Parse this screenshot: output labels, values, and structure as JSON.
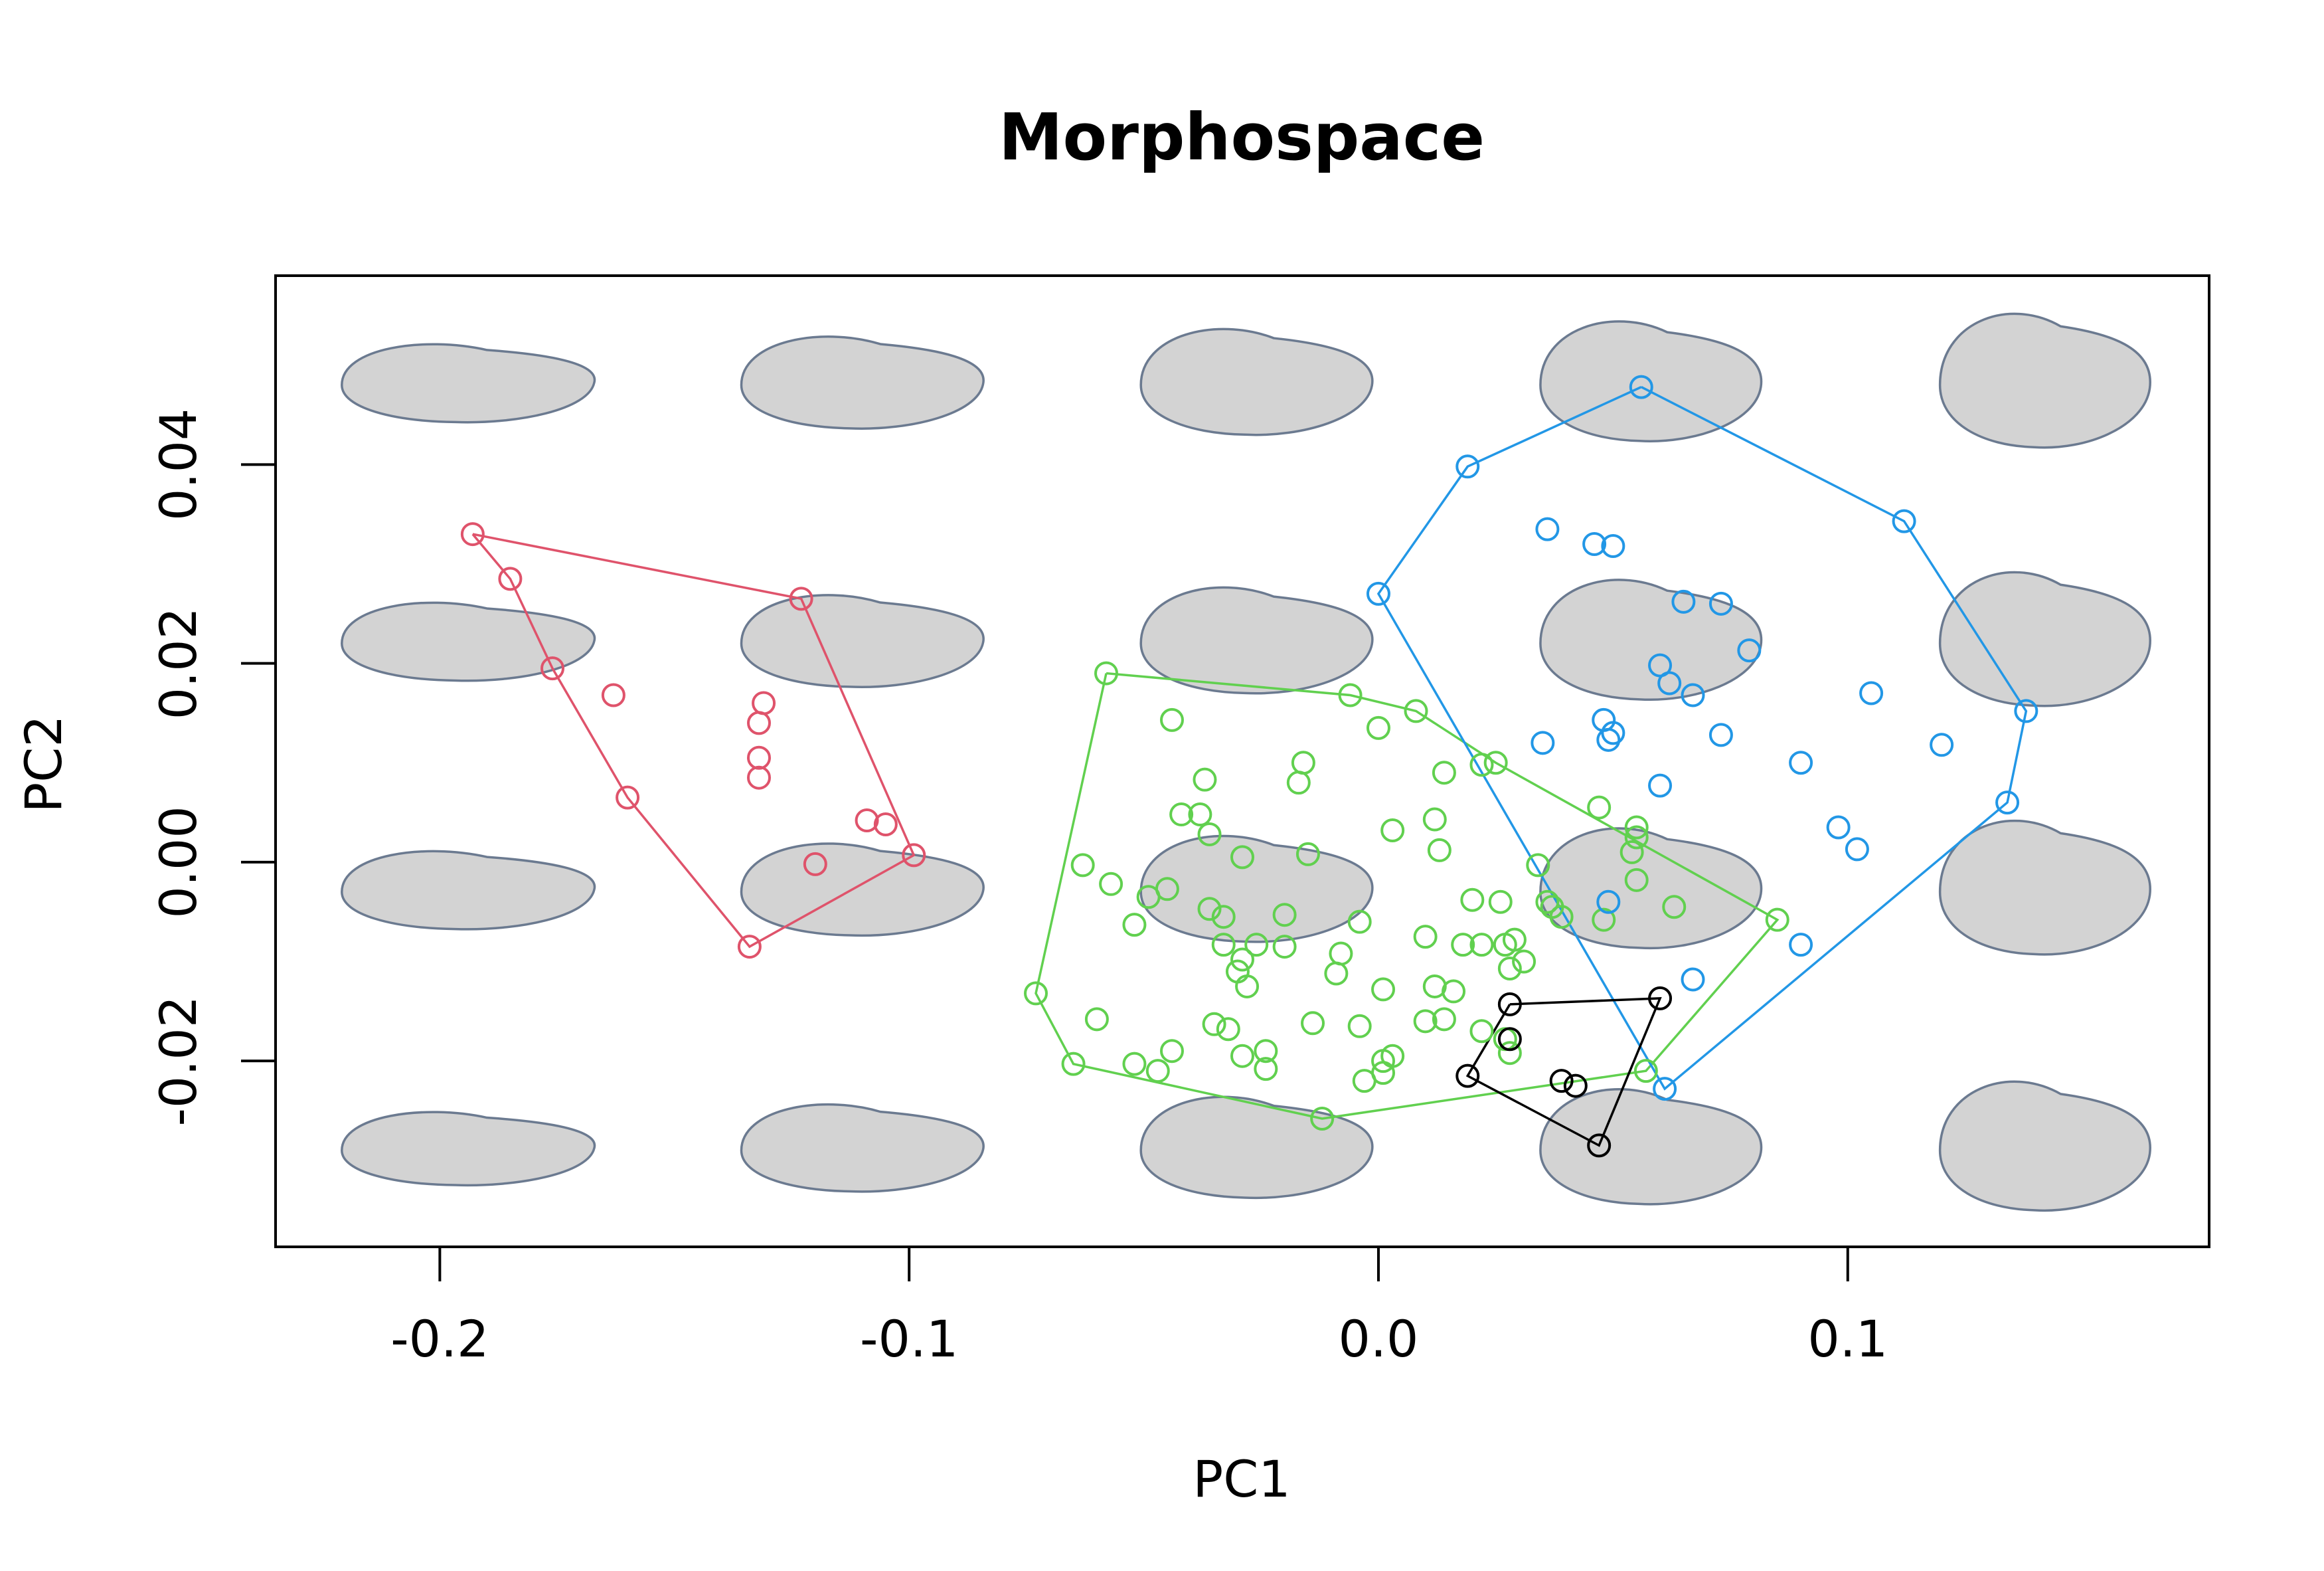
{
  "chart_data": {
    "type": "scatter",
    "title": "Morphospace",
    "xlabel": "PC1",
    "ylabel": "PC2",
    "xlim": [
      -0.235,
      0.177
    ],
    "ylim": [
      -0.0387,
      0.059
    ],
    "xticks": [
      -0.2,
      -0.1,
      0.0,
      0.1
    ],
    "xtick_labels": [
      "-0.2",
      "-0.1",
      "0.0",
      "0.1"
    ],
    "yticks": [
      -0.02,
      0.0,
      0.02,
      0.04
    ],
    "ytick_labels": [
      "-0.02",
      "0.00",
      "0.02",
      "0.04"
    ],
    "grid": false,
    "background_shapes": {
      "description_colors": {
        "fill": "#d3d3d3",
        "stroke": "#6b7a90"
      },
      "columns_x": [
        -0.194,
        -0.11,
        -0.026,
        0.058,
        0.142
      ],
      "rows_y": [
        0.048,
        0.022,
        -0.003,
        -0.029
      ]
    },
    "series": [
      {
        "color": "#DF536B",
        "hull": true,
        "points": [
          [
            -0.193,
            0.033
          ],
          [
            -0.185,
            0.0285
          ],
          [
            -0.176,
            0.0195
          ],
          [
            -0.163,
            0.0168
          ],
          [
            -0.16,
            0.0065
          ],
          [
            -0.131,
            0.016
          ],
          [
            -0.132,
            0.014
          ],
          [
            -0.132,
            0.0105
          ],
          [
            -0.132,
            0.0085
          ],
          [
            -0.123,
            0.0265
          ],
          [
            -0.109,
            0.0042
          ],
          [
            -0.105,
            0.0038
          ],
          [
            -0.12,
            -0.0002
          ],
          [
            -0.099,
            0.0007
          ],
          [
            -0.134,
            -0.0085
          ]
        ],
        "hull_points": [
          [
            -0.193,
            0.033
          ],
          [
            -0.123,
            0.0265
          ],
          [
            -0.099,
            0.0007
          ],
          [
            -0.134,
            -0.0085
          ],
          [
            -0.16,
            0.0065
          ],
          [
            -0.176,
            0.0195
          ],
          [
            -0.185,
            0.0285
          ],
          [
            -0.193,
            0.033
          ]
        ]
      },
      {
        "color": "#61D04F",
        "hull": true,
        "points": [
          [
            -0.058,
            0.019
          ],
          [
            -0.044,
            0.0143
          ],
          [
            -0.037,
            0.0083
          ],
          [
            -0.042,
            0.0048
          ],
          [
            -0.038,
            0.0048
          ],
          [
            -0.036,
            0.0028
          ],
          [
            -0.063,
            -0.0003
          ],
          [
            -0.057,
            -0.0022
          ],
          [
            -0.049,
            -0.0035
          ],
          [
            -0.045,
            -0.0027
          ],
          [
            -0.036,
            -0.0047
          ],
          [
            -0.033,
            -0.0055
          ],
          [
            -0.052,
            -0.0063
          ],
          [
            -0.029,
            0.0005
          ],
          [
            -0.016,
            0.01
          ],
          [
            -0.017,
            0.008
          ],
          [
            -0.015,
            0.0008
          ],
          [
            -0.02,
            -0.0053
          ],
          [
            -0.004,
            -0.006
          ],
          [
            -0.026,
            -0.0083
          ],
          [
            -0.02,
            -0.0085
          ],
          [
            -0.033,
            -0.0083
          ],
          [
            -0.029,
            -0.0098
          ],
          [
            -0.03,
            -0.011
          ],
          [
            -0.028,
            -0.0125
          ],
          [
            -0.008,
            -0.0092
          ],
          [
            -0.009,
            -0.0112
          ],
          [
            -0.073,
            -0.0132
          ],
          [
            -0.06,
            -0.0158
          ],
          [
            -0.035,
            -0.0163
          ],
          [
            -0.032,
            -0.0168
          ],
          [
            -0.014,
            -0.0162
          ],
          [
            -0.004,
            -0.0165
          ],
          [
            0.001,
            -0.0128
          ],
          [
            -0.044,
            -0.019
          ],
          [
            -0.052,
            -0.0203
          ],
          [
            -0.065,
            -0.0203
          ],
          [
            -0.047,
            -0.021
          ],
          [
            -0.029,
            -0.0195
          ],
          [
            -0.024,
            -0.019
          ],
          [
            -0.024,
            -0.0208
          ],
          [
            0.003,
            -0.0195
          ],
          [
            0.001,
            -0.02
          ],
          [
            0.001,
            -0.0212
          ],
          [
            -0.003,
            -0.022
          ],
          [
            -0.012,
            -0.0258
          ],
          [
            -0.006,
            0.0168
          ],
          [
            0.0,
            0.0135
          ],
          [
            0.008,
            0.0152
          ],
          [
            0.014,
            0.009
          ],
          [
            0.003,
            0.0032
          ],
          [
            0.012,
            0.0043
          ],
          [
            0.013,
            0.0012
          ],
          [
            0.025,
            0.01
          ],
          [
            0.022,
            0.0098
          ],
          [
            0.034,
            -0.0003
          ],
          [
            0.036,
            -0.004
          ],
          [
            0.037,
            -0.0045
          ],
          [
            0.039,
            -0.0055
          ],
          [
            0.02,
            -0.0038
          ],
          [
            0.026,
            -0.004
          ],
          [
            0.01,
            -0.0075
          ],
          [
            0.018,
            -0.0083
          ],
          [
            0.022,
            -0.0083
          ],
          [
            0.027,
            -0.0083
          ],
          [
            0.029,
            -0.0078
          ],
          [
            0.031,
            -0.01
          ],
          [
            0.028,
            -0.0107
          ],
          [
            0.012,
            -0.0125
          ],
          [
            0.016,
            -0.013
          ],
          [
            0.01,
            -0.016
          ],
          [
            0.014,
            -0.0158
          ],
          [
            0.022,
            -0.017
          ],
          [
            0.027,
            -0.0178
          ],
          [
            0.028,
            -0.0192
          ],
          [
            0.047,
            0.0055
          ],
          [
            0.055,
            0.0035
          ],
          [
            0.055,
            0.0025
          ],
          [
            0.054,
            0.001
          ],
          [
            0.055,
            -0.0018
          ],
          [
            0.063,
            -0.0045
          ],
          [
            0.048,
            -0.0058
          ],
          [
            0.085,
            -0.0058
          ],
          [
            0.057,
            -0.021
          ]
        ],
        "hull_points": [
          [
            -0.058,
            0.019
          ],
          [
            -0.006,
            0.0168
          ],
          [
            0.008,
            0.0152
          ],
          [
            0.025,
            0.01
          ],
          [
            0.085,
            -0.0058
          ],
          [
            0.057,
            -0.021
          ],
          [
            -0.012,
            -0.0258
          ],
          [
            -0.065,
            -0.0203
          ],
          [
            -0.073,
            -0.0132
          ],
          [
            -0.058,
            0.019
          ]
        ]
      },
      {
        "color": "#2297E6",
        "hull": true,
        "points": [
          [
            0.056,
            0.0478
          ],
          [
            0.019,
            0.0398
          ],
          [
            0.112,
            0.0343
          ],
          [
            0.036,
            0.0335
          ],
          [
            0.046,
            0.032
          ],
          [
            0.05,
            0.0318
          ],
          [
            0.0,
            0.027
          ],
          [
            0.065,
            0.0262
          ],
          [
            0.073,
            0.026
          ],
          [
            0.079,
            0.0213
          ],
          [
            0.06,
            0.0198
          ],
          [
            0.062,
            0.018
          ],
          [
            0.067,
            0.0168
          ],
          [
            0.105,
            0.017
          ],
          [
            0.138,
            0.0152
          ],
          [
            0.048,
            0.0143
          ],
          [
            0.05,
            0.013
          ],
          [
            0.049,
            0.0123
          ],
          [
            0.035,
            0.012
          ],
          [
            0.073,
            0.0128
          ],
          [
            0.12,
            0.0118
          ],
          [
            0.09,
            0.01
          ],
          [
            0.06,
            0.0077
          ],
          [
            0.134,
            0.006
          ],
          [
            0.098,
            0.0035
          ],
          [
            0.102,
            0.0013
          ],
          [
            0.049,
            -0.004
          ],
          [
            0.09,
            -0.0083
          ],
          [
            0.067,
            -0.0118
          ],
          [
            0.061,
            -0.0228
          ]
        ],
        "hull_points": [
          [
            0.056,
            0.0478
          ],
          [
            0.112,
            0.0343
          ],
          [
            0.138,
            0.0152
          ],
          [
            0.134,
            0.006
          ],
          [
            0.061,
            -0.0228
          ],
          [
            0.0,
            0.027
          ],
          [
            0.019,
            0.0398
          ],
          [
            0.056,
            0.0478
          ]
        ]
      },
      {
        "color": "#000000",
        "hull": true,
        "points": [
          [
            0.028,
            -0.0143
          ],
          [
            0.06,
            -0.0137
          ],
          [
            0.028,
            -0.0178
          ],
          [
            0.019,
            -0.0215
          ],
          [
            0.039,
            -0.022
          ],
          [
            0.042,
            -0.0225
          ],
          [
            0.047,
            -0.0285
          ]
        ],
        "hull_points": [
          [
            0.028,
            -0.0143
          ],
          [
            0.06,
            -0.0137
          ],
          [
            0.047,
            -0.0285
          ],
          [
            0.019,
            -0.0215
          ],
          [
            0.028,
            -0.0143
          ]
        ]
      }
    ]
  }
}
